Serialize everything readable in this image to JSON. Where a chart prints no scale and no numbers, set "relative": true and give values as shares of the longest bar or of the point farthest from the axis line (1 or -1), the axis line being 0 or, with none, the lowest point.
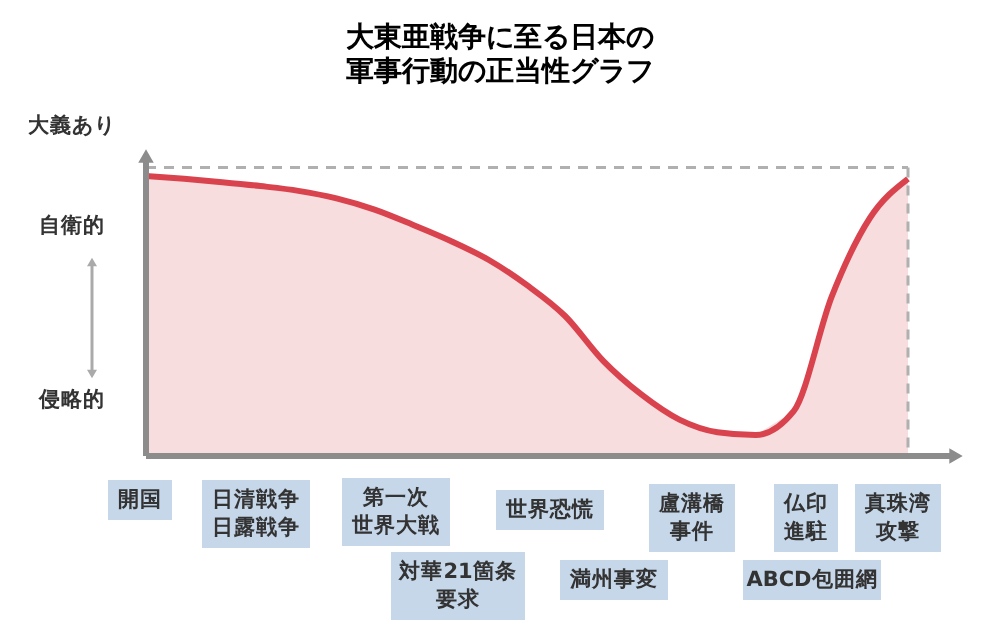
{
  "chart_data": {
    "type": "area",
    "title": "大東亜戦争に至る日本の軍事行動の正当性グラフ",
    "relative": true,
    "categories": [
      null,
      null,
      null,
      null,
      null,
      null,
      null,
      null,
      null,
      null,
      null,
      null,
      null,
      null,
      null,
      null,
      null,
      null,
      null,
      null,
      null
    ],
    "series": [
      {
        "color": "#d9434e",
        "values": [
          1.0,
          0.99,
          0.978,
          0.964,
          0.947,
          0.92,
          0.88,
          0.826,
          0.768,
          0.7,
          0.61,
          0.5,
          0.34,
          0.22,
          0.13,
          0.085,
          0.075,
          0.16,
          0.57,
          0.85,
          0.99
        ]
      }
    ],
    "ref_lines": [
      {
        "axis": "y",
        "value": 1.03,
        "color": "#b0b0b0",
        "line_style": "dashed"
      }
    ],
    "annotations": [
      "大義あり",
      "自衛的",
      "侵略的",
      "開国",
      "日清戦争日露戦争",
      "第一次世界大戦",
      "世界恐慌",
      "盧溝橋事件",
      "仏印進駐",
      "真珠湾攻撃",
      "対華21箇条要求",
      "満州事変",
      "ABCD包囲網"
    ]
  }
}
